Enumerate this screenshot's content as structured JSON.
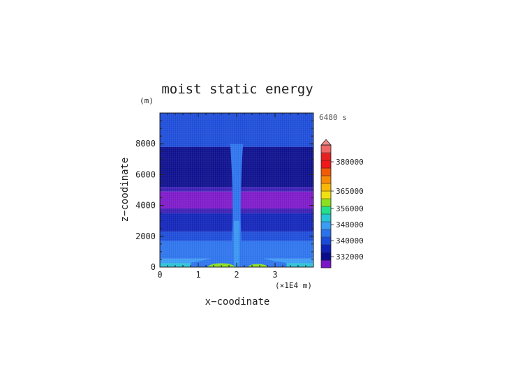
{
  "chart_data": {
    "type": "heatmap",
    "title": "moist static energy",
    "xlabel": "x−coodinate",
    "ylabel": "z−coodinate",
    "y_unit": "(m)",
    "x_unit": "(×1E4 m)",
    "time_label": "6480 s",
    "xlim": [
      0,
      4
    ],
    "ylim": [
      0,
      10000
    ],
    "x_ticks": [
      "0",
      "1",
      "2",
      "3"
    ],
    "y_ticks": [
      "0",
      "2000",
      "4000",
      "6000",
      "8000"
    ],
    "grid": true,
    "colorbar": {
      "placement": "right",
      "labels": [
        "332000",
        "340000",
        "348000",
        "356000",
        "365000",
        "380000"
      ],
      "colors": [
        "#7b16c8",
        "#0a0c8c",
        "#0f22b8",
        "#1a4ad8",
        "#2a72ec",
        "#3a9cf4",
        "#29c3d6",
        "#22e08c",
        "#8ae020",
        "#f0e010",
        "#f8b808",
        "#f88a08",
        "#f25a08",
        "#f01818",
        "#e62020",
        "#ee6666"
      ],
      "extend_max_color": "#f08a8a"
    },
    "layers": [
      {
        "z_min": 0,
        "z_max": 250,
        "value": 348000,
        "color": "#29c3d6"
      },
      {
        "z_min": 250,
        "z_max": 550,
        "value": 344000,
        "color": "#3a9cf4"
      },
      {
        "z_min": 550,
        "z_max": 1700,
        "value": 340000,
        "color": "#2a72ec"
      },
      {
        "z_min": 1700,
        "z_max": 2300,
        "value": 338000,
        "color": "#1a4ad8"
      },
      {
        "z_min": 2300,
        "z_max": 3500,
        "value": 336000,
        "color": "#0f22b8"
      },
      {
        "z_min": 3500,
        "z_max": 3800,
        "value": 334000,
        "color": "#3a1ab4"
      },
      {
        "z_min": 3800,
        "z_max": 4900,
        "value": 332000,
        "color": "#7b16c8"
      },
      {
        "z_min": 4900,
        "z_max": 5200,
        "value": 334000,
        "color": "#3a1ab4"
      },
      {
        "z_min": 5200,
        "z_max": 7800,
        "value": 336000,
        "color": "#0a0c8c"
      },
      {
        "z_min": 7800,
        "z_max": 10000,
        "value": 338000,
        "color": "#1a4ad8"
      }
    ],
    "features": [
      {
        "name": "central-column",
        "x_min": 1.83,
        "x_max": 2.17,
        "z_min": 0,
        "z_max": 8000,
        "color": "#2a72ec"
      },
      {
        "name": "surface-warm-left",
        "x_center": 1.6,
        "width": 0.7,
        "z_max": 250,
        "color": "#8ae020"
      },
      {
        "name": "surface-warm-right",
        "x_center": 2.55,
        "width": 0.5,
        "z_max": 200,
        "color": "#8ae020"
      }
    ]
  }
}
